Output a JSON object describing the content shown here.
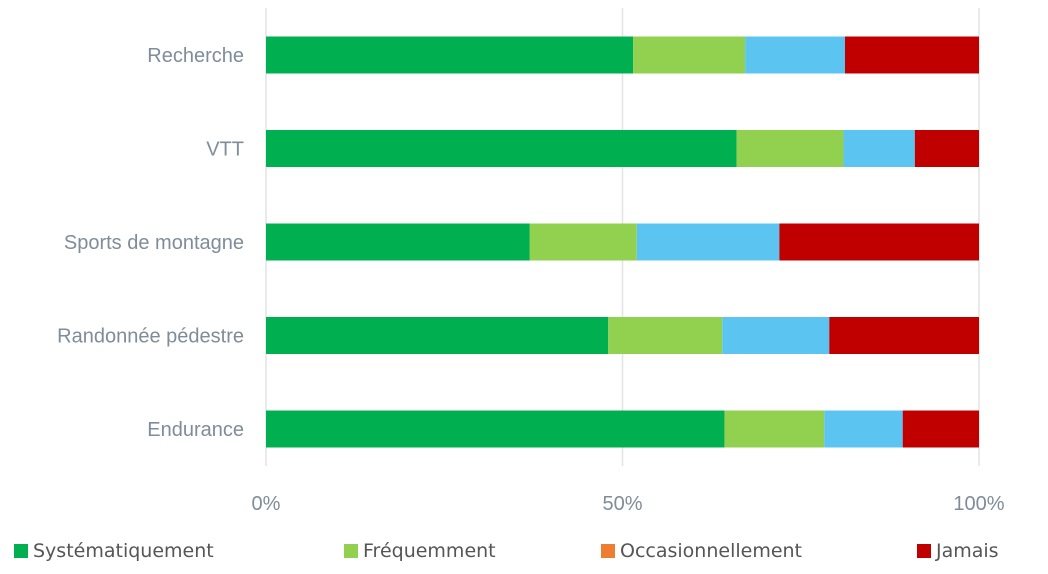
{
  "chart_data": {
    "type": "bar",
    "orientation": "horizontal",
    "stacked": true,
    "percent": true,
    "categories": [
      "Recherche",
      "VTT",
      "Sports de montagne",
      "Randonnée pédestre",
      "Endurance"
    ],
    "series": [
      {
        "name": "Systématiquement",
        "color": "#00b050",
        "values": [
          51.5,
          66,
          37,
          48,
          64.3
        ]
      },
      {
        "name": "Fréquemment",
        "color": "#92d050",
        "values": [
          15.7,
          15,
          15,
          16,
          14
        ]
      },
      {
        "name": "Occasionnellement",
        "color": "#5bc4f1",
        "values": [
          14,
          10,
          20,
          15,
          11
        ]
      },
      {
        "name": "Jamais",
        "color": "#c00000",
        "values": [
          18.8,
          9,
          28,
          21,
          10.7
        ]
      }
    ],
    "legend_colors": [
      "#00b050",
      "#92d050",
      "#ed7d31",
      "#c00000"
    ],
    "xlim": [
      0,
      100
    ],
    "x_ticks": [
      "0%",
      "50%",
      "100%"
    ],
    "grid": true,
    "legend_position": "bottom",
    "title": "",
    "xlabel": "",
    "ylabel": ""
  }
}
